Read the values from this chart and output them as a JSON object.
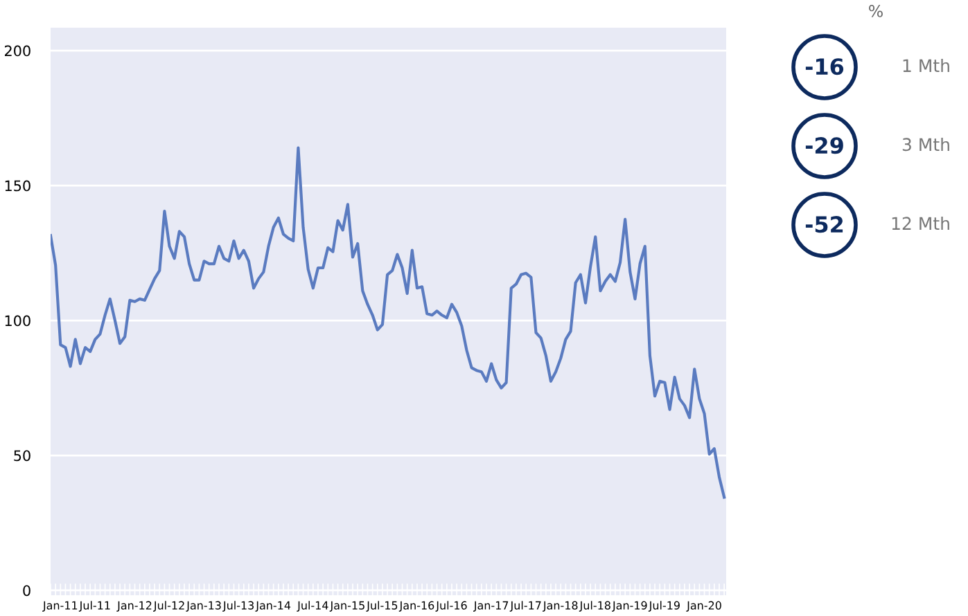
{
  "chart_data": [
    {
      "type": "line",
      "color": "#5a7bc0",
      "grid": "y",
      "marker": "none",
      "line_style": "solid",
      "categories": [
        null,
        null,
        "Jan-11",
        null,
        null,
        null,
        null,
        null,
        null,
        "Jul-11",
        null,
        null,
        null,
        null,
        null,
        null,
        null,
        "Jan-12",
        null,
        null,
        null,
        null,
        null,
        null,
        "Jul-12",
        null,
        null,
        null,
        null,
        null,
        null,
        "Jan-13",
        null,
        null,
        null,
        null,
        null,
        null,
        "Jul-13",
        null,
        null,
        null,
        null,
        null,
        null,
        "Jan-14",
        null,
        null,
        null,
        null,
        null,
        null,
        null,
        "Jul-14",
        null,
        null,
        null,
        null,
        null,
        null,
        "Jan-15",
        null,
        null,
        null,
        null,
        null,
        null,
        "Jul-15",
        null,
        null,
        null,
        null,
        null,
        null,
        "Jan-16",
        null,
        null,
        null,
        null,
        null,
        null,
        "Jul-16",
        null,
        null,
        null,
        null,
        null,
        null,
        null,
        "Jan-17",
        null,
        null,
        null,
        null,
        null,
        null,
        "Jul-17",
        null,
        null,
        null,
        null,
        null,
        null,
        "Jan-18",
        null,
        null,
        null,
        null,
        null,
        null,
        "Jul-18",
        null,
        null,
        null,
        null,
        null,
        null,
        "Jan-19",
        null,
        null,
        null,
        null,
        null,
        null,
        "Jul-19",
        null,
        null,
        null,
        null,
        null,
        null,
        null,
        "Jan-20",
        null,
        null,
        null,
        null
      ],
      "values": [
        131.5,
        120.5,
        91,
        90,
        83,
        93,
        84,
        90,
        88.5,
        93,
        95,
        102,
        108,
        100,
        91.5,
        94,
        107.5,
        107,
        108,
        107.5,
        111.5,
        115.5,
        118.5,
        140.5,
        127.5,
        123,
        133,
        131,
        121,
        115,
        115,
        122,
        121,
        121,
        127.5,
        123,
        122,
        129.5,
        123,
        126,
        122,
        112,
        115.5,
        118,
        127.5,
        134.5,
        138,
        132,
        130.5,
        129.5,
        164,
        134.5,
        119,
        112,
        119.5,
        119.5,
        127,
        125.5,
        137,
        133.5,
        143,
        123.5,
        128.5,
        111,
        106,
        102,
        96.5,
        98.5,
        117,
        118.5,
        124.5,
        119.5,
        110,
        126,
        112,
        112.5,
        102.5,
        102,
        103.5,
        102,
        101,
        106,
        103,
        98,
        89,
        82.5,
        81.5,
        81,
        77.5,
        84,
        78,
        75,
        77,
        112,
        113.5,
        117,
        117.5,
        116,
        95.5,
        93.5,
        87,
        77.5,
        81,
        86,
        93,
        96,
        114,
        117,
        106.5,
        120,
        131,
        111,
        114.5,
        117,
        114.5,
        121.5,
        137.5,
        118,
        108,
        121,
        127.5,
        87,
        72,
        77.5,
        77,
        67,
        79,
        71,
        68.5,
        64,
        82,
        71,
        65.5,
        50.5,
        52.5,
        42,
        34.5
      ],
      "ylim": [
        -1.8,
        208.5
      ],
      "yticks": [
        0,
        50,
        100,
        150,
        200
      ]
    },
    {
      "type": "other",
      "title": "%",
      "color": "#0d2a5e",
      "annotations": [
        "-16",
        "1 Mth",
        "-29",
        "3 Mth",
        "-52",
        "12 Mth"
      ]
    }
  ]
}
